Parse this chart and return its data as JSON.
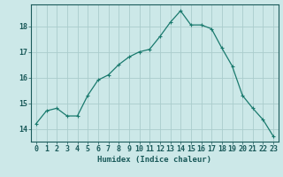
{
  "x": [
    0,
    1,
    2,
    3,
    4,
    5,
    6,
    7,
    8,
    9,
    10,
    11,
    12,
    13,
    14,
    15,
    16,
    17,
    18,
    19,
    20,
    21,
    22,
    23
  ],
  "y": [
    14.2,
    14.7,
    14.8,
    14.5,
    14.5,
    15.3,
    15.9,
    16.1,
    16.5,
    16.8,
    17.0,
    17.1,
    17.6,
    18.15,
    18.6,
    18.05,
    18.05,
    17.9,
    17.15,
    16.45,
    15.3,
    14.8,
    14.35,
    13.7
  ],
  "line_color": "#1a7a6e",
  "marker": "+",
  "marker_color": "#1a7a6e",
  "bg_color": "#cce8e8",
  "grid_color": "#aacccc",
  "axis_color": "#1a5a5a",
  "xlabel": "Humidex (Indice chaleur)",
  "ylabel_ticks": [
    14,
    15,
    16,
    17,
    18
  ],
  "xlim": [
    -0.5,
    23.5
  ],
  "ylim": [
    13.5,
    18.85
  ],
  "xlabel_fontsize": 6.5,
  "tick_fontsize": 6.0
}
